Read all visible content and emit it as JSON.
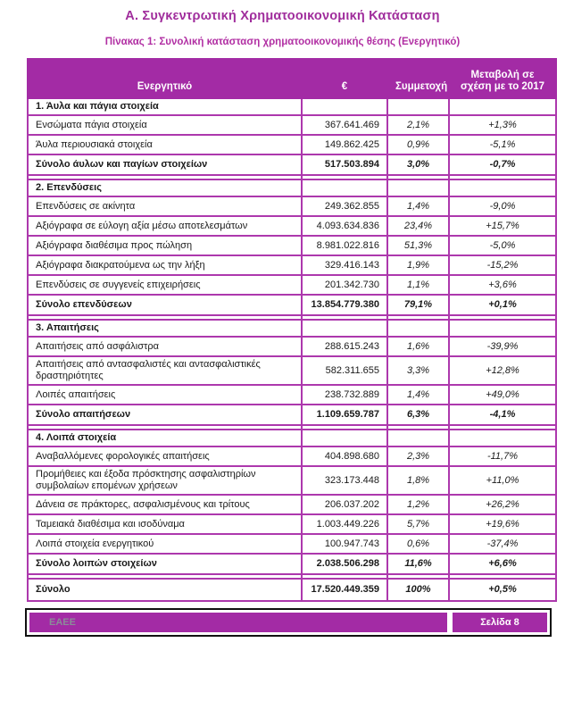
{
  "document": {
    "title": "Α. Συγκεντρωτική Χρηματοοικονομική Κατάσταση",
    "table_caption": "Πίνακας 1: Συνολική κατάσταση χρηματοοικονομικής θέσης (Ενεργητικό)"
  },
  "table": {
    "columns": [
      "Ενεργητικό",
      "€",
      "Συμμετοχή",
      "Μεταβολή σε σχέση με το 2017"
    ],
    "sections": [
      {
        "title": "1. Άυλα και πάγια στοιχεία",
        "rows": [
          {
            "label": "Ενσώματα πάγια στοιχεία",
            "amount": "367.641.469",
            "share": "2,1%",
            "change": "+1,3%"
          },
          {
            "label": "Άυλα περιουσιακά στοιχεία",
            "amount": "149.862.425",
            "share": "0,9%",
            "change": "-5,1%"
          }
        ],
        "total": {
          "label": "Σύνολο άυλων και παγίων στοιχείων",
          "amount": "517.503.894",
          "share": "3,0%",
          "change": "-0,7%"
        }
      },
      {
        "title": "2. Επενδύσεις",
        "rows": [
          {
            "label": "Επενδύσεις σε ακίνητα",
            "amount": "249.362.855",
            "share": "1,4%",
            "change": "-9,0%"
          },
          {
            "label": "Αξιόγραφα σε εύλογη αξία μέσω αποτελεσμάτων",
            "amount": "4.093.634.836",
            "share": "23,4%",
            "change": "+15,7%"
          },
          {
            "label": "Αξιόγραφα διαθέσιμα προς πώληση",
            "amount": "8.981.022.816",
            "share": "51,3%",
            "change": "-5,0%"
          },
          {
            "label": "Αξιόγραφα διακρατούμενα ως την λήξη",
            "amount": "329.416.143",
            "share": "1,9%",
            "change": "-15,2%"
          },
          {
            "label": "Επενδύσεις σε συγγενείς επιχειρήσεις",
            "amount": "201.342.730",
            "share": "1,1%",
            "change": "+3,6%"
          }
        ],
        "total": {
          "label": "Σύνολο επενδύσεων",
          "amount": "13.854.779.380",
          "share": "79,1%",
          "change": "+0,1%"
        }
      },
      {
        "title": "3. Απαιτήσεις",
        "rows": [
          {
            "label": "Απαιτήσεις από ασφάλιστρα",
            "amount": "288.615.243",
            "share": "1,6%",
            "change": "-39,9%"
          },
          {
            "label": "Απαιτήσεις από αντασφαλιστές και αντασφαλιστικές δραστηριότητες",
            "amount": "582.311.655",
            "share": "3,3%",
            "change": "+12,8%"
          },
          {
            "label": "Λοιπές απαιτήσεις",
            "amount": "238.732.889",
            "share": "1,4%",
            "change": "+49,0%"
          }
        ],
        "total": {
          "label": "Σύνολο απαιτήσεων",
          "amount": "1.109.659.787",
          "share": "6,3%",
          "change": "-4,1%"
        }
      },
      {
        "title": "4. Λοιπά στοιχεία",
        "rows": [
          {
            "label": "Αναβαλλόμενες φορολογικές απαιτήσεις",
            "amount": "404.898.680",
            "share": "2,3%",
            "change": "-11,7%"
          },
          {
            "label": "Προμήθειες και έξοδα πρόσκτησης ασφαλιστηρίων συμβολαίων επομένων χρήσεων",
            "amount": "323.173.448",
            "share": "1,8%",
            "change": "+11,0%"
          },
          {
            "label": "Δάνεια σε πράκτορες, ασφαλισμένους και τρίτους",
            "amount": "206.037.202",
            "share": "1,2%",
            "change": "+26,2%"
          },
          {
            "label": "Ταμειακά διαθέσιμα και ισοδύναμα",
            "amount": "1.003.449.226",
            "share": "5,7%",
            "change": "+19,6%"
          },
          {
            "label": "Λοιπά στοιχεία ενεργητικού",
            "amount": "100.947.743",
            "share": "0,6%",
            "change": "-37,4%"
          }
        ],
        "total": {
          "label": "Σύνολο λοιπών στοιχείων",
          "amount": "2.038.506.298",
          "share": "11,6%",
          "change": "+6,6%"
        }
      }
    ],
    "grand_total": {
      "label": "Σύνολο",
      "amount": "17.520.449.359",
      "share": "100%",
      "change": "+0,5%"
    }
  },
  "footer": {
    "org": "ΕΑΕΕ",
    "page_label": "Σελίδα 8"
  },
  "colors": {
    "accent": "#A32BA5",
    "grid": "#AD38AD",
    "title": "#A02D9C",
    "caption": "#B12FA3",
    "header_text": "#FFFFFF",
    "body_text": "#1A1A1A",
    "footer_frame": "#111111",
    "footer_org_text": "#8B8B99"
  }
}
